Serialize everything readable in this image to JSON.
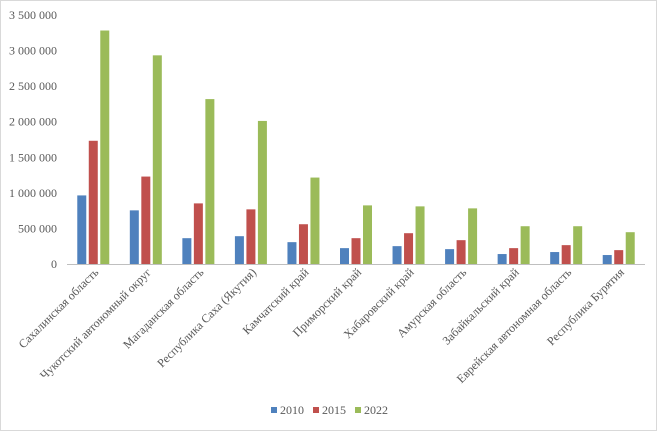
{
  "chart_data": {
    "type": "bar",
    "title": "",
    "xlabel": "",
    "ylabel": "",
    "ylim": [
      0,
      3500000
    ],
    "yticks": [
      0,
      500000,
      1000000,
      1500000,
      2000000,
      2500000,
      3000000,
      3500000
    ],
    "ytick_labels": [
      "0",
      "500 000",
      "1 000 000",
      "1 500 000",
      "2 000 000",
      "2 500 000",
      "3 000 000",
      "3 500 000"
    ],
    "grid": false,
    "legend_position": "bottom",
    "categories": [
      "Сахалинская область",
      "Чукотский автономный округ",
      "Магаданская область",
      "Республика Саха (Якутия)",
      "Камчатский край",
      "Приморский край",
      "Хабаровский край",
      "Амурская область",
      "Забайкальский край",
      "Еврейская автономная область",
      "Республика Бурятия"
    ],
    "series": [
      {
        "name": "2010",
        "color": "#4F81BD",
        "values": [
          964000,
          754000,
          363000,
          391000,
          307000,
          223000,
          251000,
          209000,
          140000,
          168000,
          126000
        ]
      },
      {
        "name": "2015",
        "color": "#C0504D",
        "values": [
          1732000,
          1229000,
          852000,
          768000,
          559000,
          363000,
          433000,
          335000,
          223000,
          265000,
          195000
        ]
      },
      {
        "name": "2022",
        "color": "#9BBB59",
        "values": [
          3282000,
          2933000,
          2318000,
          2011000,
          1215000,
          824000,
          810000,
          782000,
          531000,
          531000,
          447000
        ]
      }
    ]
  }
}
